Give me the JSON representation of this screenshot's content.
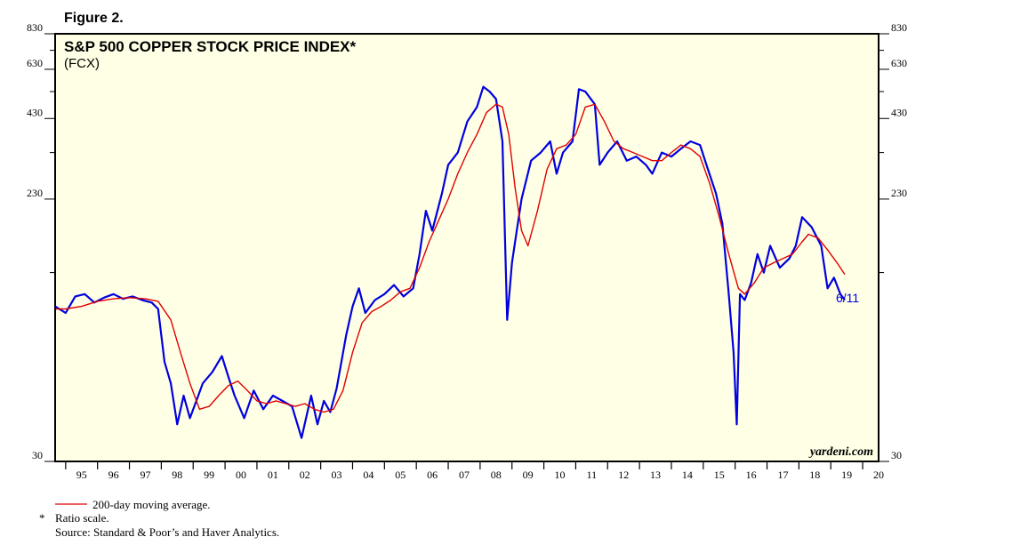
{
  "figure_label": "Figure 2.",
  "footnotes": {
    "legend_ma": "200-day moving average.",
    "ratio_mark": "*",
    "ratio_text": "Ratio scale.",
    "source": "Source: Standard & Poor’s and Haver Analytics."
  },
  "colors": {
    "plot_bg": "#ffffe6",
    "price_line": "#0000e0",
    "ma_line": "#e00000",
    "frame": "#000000"
  },
  "chart_data": {
    "type": "line",
    "title": "S&P 500 COPPER STOCK PRICE INDEX*",
    "subtitle": "(FCX)",
    "brand": "yardeni.com",
    "end_label": "6/11",
    "scale": "log",
    "ylim": [
      30,
      830
    ],
    "yticks": [
      30,
      230,
      430,
      630,
      830
    ],
    "yticks_unlabeled": [
      130,
      330,
      530,
      730
    ],
    "xlim": [
      1994.67,
      2020.5
    ],
    "xlabels": [
      "95",
      "96",
      "97",
      "98",
      "99",
      "00",
      "01",
      "02",
      "03",
      "04",
      "05",
      "06",
      "07",
      "08",
      "09",
      "10",
      "11",
      "12",
      "13",
      "14",
      "15",
      "16",
      "17",
      "18",
      "19",
      "20"
    ],
    "xlabel_years": [
      1995,
      1996,
      1997,
      1998,
      1999,
      2000,
      2001,
      2002,
      2003,
      2004,
      2005,
      2006,
      2007,
      2008,
      2009,
      2010,
      2011,
      2012,
      2013,
      2014,
      2015,
      2016,
      2017,
      2018,
      2019,
      2020
    ],
    "series": [
      {
        "name": "S&P 500 Copper Stock Price Index (FCX)",
        "x": [
          1994.67,
          1995.0,
          1995.3,
          1995.6,
          1995.9,
          1996.2,
          1996.5,
          1996.8,
          1997.1,
          1997.4,
          1997.7,
          1997.9,
          1998.1,
          1998.3,
          1998.5,
          1998.7,
          1998.9,
          1999.1,
          1999.3,
          1999.6,
          1999.9,
          2000.1,
          2000.3,
          2000.6,
          2000.9,
          2001.2,
          2001.5,
          2001.8,
          2002.1,
          2002.4,
          2002.7,
          2002.9,
          2003.1,
          2003.3,
          2003.5,
          2003.8,
          2004.0,
          2004.2,
          2004.4,
          2004.7,
          2005.0,
          2005.3,
          2005.6,
          2005.9,
          2006.1,
          2006.3,
          2006.5,
          2006.8,
          2007.0,
          2007.3,
          2007.6,
          2007.9,
          2008.1,
          2008.3,
          2008.5,
          2008.7,
          2008.85,
          2009.0,
          2009.15,
          2009.3,
          2009.6,
          2009.9,
          2010.2,
          2010.4,
          2010.6,
          2010.9,
          2011.1,
          2011.3,
          2011.6,
          2011.75,
          2012.0,
          2012.3,
          2012.6,
          2012.9,
          2013.2,
          2013.4,
          2013.7,
          2014.0,
          2014.3,
          2014.6,
          2014.9,
          2015.1,
          2015.4,
          2015.6,
          2015.8,
          2015.95,
          2016.05,
          2016.15,
          2016.3,
          2016.5,
          2016.7,
          2016.9,
          2017.1,
          2017.4,
          2017.7,
          2017.9,
          2018.1,
          2018.4,
          2018.7,
          2018.9,
          2019.1,
          2019.3,
          2019.44
        ],
        "values": [
          100,
          95,
          108,
          110,
          103,
          107,
          110,
          106,
          108,
          105,
          103,
          98,
          65,
          55,
          40,
          50,
          42,
          48,
          55,
          60,
          68,
          58,
          50,
          42,
          52,
          45,
          50,
          48,
          46,
          36,
          50,
          40,
          48,
          44,
          53,
          80,
          100,
          115,
          95,
          105,
          110,
          118,
          108,
          115,
          150,
          210,
          180,
          240,
          300,
          330,
          420,
          470,
          550,
          530,
          500,
          360,
          90,
          140,
          180,
          230,
          310,
          330,
          360,
          280,
          330,
          360,
          540,
          530,
          480,
          300,
          330,
          360,
          310,
          320,
          300,
          280,
          330,
          320,
          340,
          360,
          350,
          300,
          240,
          190,
          110,
          70,
          40,
          110,
          105,
          120,
          150,
          130,
          160,
          135,
          145,
          160,
          200,
          185,
          160,
          115,
          125,
          110,
          105
        ]
      },
      {
        "name": "200-day moving average",
        "x": [
          1994.67,
          1995.0,
          1995.5,
          1996.0,
          1996.5,
          1997.0,
          1997.5,
          1997.9,
          1998.3,
          1998.6,
          1998.9,
          1999.2,
          1999.5,
          1999.8,
          2000.1,
          2000.4,
          2000.7,
          2001.0,
          2001.3,
          2001.6,
          2001.9,
          2002.2,
          2002.5,
          2002.8,
          2003.1,
          2003.4,
          2003.7,
          2004.0,
          2004.3,
          2004.6,
          2004.9,
          2005.2,
          2005.5,
          2005.8,
          2006.1,
          2006.4,
          2006.7,
          2007.0,
          2007.3,
          2007.6,
          2007.9,
          2008.2,
          2008.5,
          2008.7,
          2008.9,
          2009.1,
          2009.3,
          2009.5,
          2009.8,
          2010.1,
          2010.4,
          2010.7,
          2011.0,
          2011.3,
          2011.6,
          2011.9,
          2012.2,
          2012.5,
          2012.8,
          2013.1,
          2013.4,
          2013.7,
          2014.0,
          2014.3,
          2014.6,
          2014.9,
          2015.2,
          2015.5,
          2015.8,
          2016.1,
          2016.3,
          2016.6,
          2016.9,
          2017.2,
          2017.5,
          2017.8,
          2018.1,
          2018.3,
          2018.6,
          2018.9,
          2019.2,
          2019.44
        ],
        "values": [
          98,
          98,
          100,
          104,
          106,
          107,
          106,
          104,
          90,
          70,
          55,
          45,
          46,
          50,
          54,
          56,
          52,
          48,
          47,
          48,
          47,
          46,
          47,
          45,
          44,
          45,
          52,
          70,
          88,
          96,
          100,
          105,
          112,
          115,
          135,
          165,
          195,
          230,
          280,
          330,
          380,
          450,
          480,
          470,
          380,
          250,
          180,
          160,
          210,
          290,
          340,
          350,
          380,
          470,
          480,
          420,
          360,
          340,
          330,
          320,
          310,
          310,
          330,
          350,
          340,
          320,
          260,
          200,
          150,
          115,
          110,
          120,
          135,
          140,
          145,
          150,
          165,
          175,
          170,
          155,
          140,
          128
        ]
      }
    ]
  }
}
